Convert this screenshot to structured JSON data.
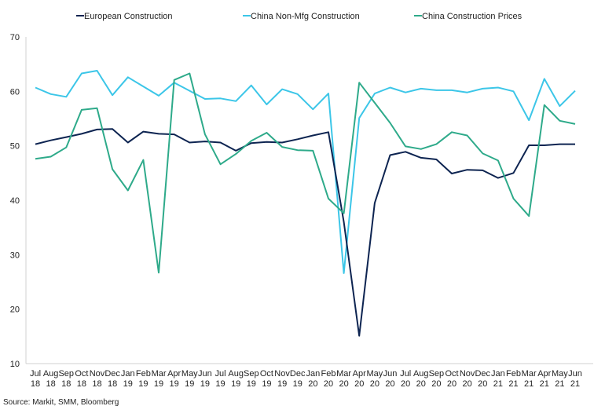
{
  "chart_data": {
    "type": "line",
    "title": "",
    "xlabel": "",
    "ylabel": "",
    "ylim": [
      10,
      70
    ],
    "yticks": [
      10,
      20,
      30,
      40,
      50,
      60,
      70
    ],
    "grid": false,
    "legend_position": "top",
    "categories": [
      {
        "month": "Jul",
        "year": "18"
      },
      {
        "month": "Aug",
        "year": "18"
      },
      {
        "month": "Sep",
        "year": "18"
      },
      {
        "month": "Oct",
        "year": "18"
      },
      {
        "month": "Nov",
        "year": "18"
      },
      {
        "month": "Dec",
        "year": "18"
      },
      {
        "month": "Jan",
        "year": "19"
      },
      {
        "month": "Feb",
        "year": "19"
      },
      {
        "month": "Mar",
        "year": "19"
      },
      {
        "month": "Apr",
        "year": "19"
      },
      {
        "month": "May",
        "year": "19"
      },
      {
        "month": "Jun",
        "year": "19"
      },
      {
        "month": "Jul",
        "year": "19"
      },
      {
        "month": "Aug",
        "year": "19"
      },
      {
        "month": "Sep",
        "year": "19"
      },
      {
        "month": "Oct",
        "year": "19"
      },
      {
        "month": "Nov",
        "year": "19"
      },
      {
        "month": "Dec",
        "year": "19"
      },
      {
        "month": "Jan",
        "year": "20"
      },
      {
        "month": "Feb",
        "year": "20"
      },
      {
        "month": "Mar",
        "year": "20"
      },
      {
        "month": "Apr",
        "year": "20"
      },
      {
        "month": "May",
        "year": "20"
      },
      {
        "month": "Jun",
        "year": "20"
      },
      {
        "month": "Jul",
        "year": "20"
      },
      {
        "month": "Aug",
        "year": "20"
      },
      {
        "month": "Sep",
        "year": "20"
      },
      {
        "month": "Oct",
        "year": "20"
      },
      {
        "month": "Nov",
        "year": "20"
      },
      {
        "month": "Dec",
        "year": "20"
      },
      {
        "month": "Jan",
        "year": "21"
      },
      {
        "month": "Feb",
        "year": "21"
      },
      {
        "month": "Mar",
        "year": "21"
      },
      {
        "month": "Apr",
        "year": "21"
      },
      {
        "month": "May",
        "year": "21"
      },
      {
        "month": "Jun",
        "year": "21"
      }
    ],
    "series": [
      {
        "name": "European Construction",
        "color": "#0d2451",
        "values": [
          50.3,
          51.0,
          51.6,
          52.2,
          53.0,
          53.1,
          50.6,
          52.6,
          52.2,
          52.1,
          50.6,
          50.8,
          50.6,
          49.1,
          50.5,
          50.7,
          50.6,
          51.2,
          51.9,
          52.5,
          36.0,
          15.1,
          39.5,
          48.3,
          48.9,
          47.8,
          47.5,
          44.9,
          45.6,
          45.5,
          44.1,
          45.0,
          50.1,
          50.1,
          50.3,
          50.3
        ]
      },
      {
        "name": "China Non-Mfg Construction",
        "color": "#3cc6e8",
        "values": [
          60.7,
          59.5,
          59.0,
          63.3,
          63.8,
          59.3,
          62.6,
          60.9,
          59.2,
          61.6,
          60.1,
          58.6,
          58.7,
          58.2,
          61.1,
          57.6,
          60.4,
          59.5,
          56.7,
          59.6,
          26.6,
          55.1,
          59.6,
          60.7,
          59.8,
          60.5,
          60.2,
          60.2,
          59.8,
          60.5,
          60.7,
          60.0,
          54.7,
          62.3,
          57.3,
          60.1
        ]
      },
      {
        "name": "China Construction Prices",
        "color": "#2eaa8a",
        "values": [
          47.6,
          48.0,
          49.7,
          56.6,
          56.9,
          45.7,
          41.8,
          47.4,
          26.7,
          62.1,
          63.3,
          52.1,
          46.6,
          48.5,
          50.9,
          52.4,
          49.8,
          49.2,
          49.1,
          40.3,
          37.6,
          61.6,
          57.9,
          54.2,
          49.9,
          49.4,
          50.3,
          52.5,
          51.9,
          48.6,
          47.3,
          40.3,
          37.1,
          57.5,
          54.6,
          54.0
        ]
      }
    ]
  },
  "source": "Source: Markit, SMM, Bloomberg"
}
